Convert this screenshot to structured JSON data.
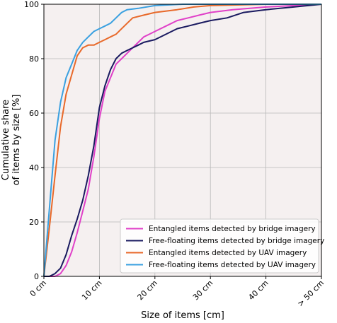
{
  "chart_data": {
    "type": "line",
    "xlabel": "Size of items [cm]",
    "ylabel_lines": [
      "Cumulative share",
      "of items by size [%]"
    ],
    "xlim": [
      0,
      50
    ],
    "ylim": [
      0,
      100
    ],
    "x_ticks": [
      {
        "value": 0,
        "label": "0 cm"
      },
      {
        "value": 10,
        "label": "10 cm"
      },
      {
        "value": 20,
        "label": "20 cm"
      },
      {
        "value": 30,
        "label": "30 cm"
      },
      {
        "value": 40,
        "label": "40 cm"
      },
      {
        "value": 50,
        "label": "> 50 cm"
      }
    ],
    "y_ticks": [
      0,
      20,
      40,
      60,
      80,
      100
    ],
    "grid": true,
    "background": "#f5f0f0",
    "legend_position": "bottom-right",
    "series": [
      {
        "name": "Entangled items detected by bridge imagery",
        "color": "#e040c8",
        "points": [
          [
            0,
            0
          ],
          [
            2,
            0
          ],
          [
            3,
            1
          ],
          [
            4,
            4
          ],
          [
            5,
            9
          ],
          [
            6,
            16
          ],
          [
            7,
            24
          ],
          [
            8,
            32
          ],
          [
            9,
            44
          ],
          [
            10,
            58
          ],
          [
            11,
            68
          ],
          [
            12,
            73
          ],
          [
            13,
            78
          ],
          [
            14,
            80
          ],
          [
            15,
            82
          ],
          [
            16,
            84
          ],
          [
            17,
            86
          ],
          [
            18,
            88
          ],
          [
            19,
            89
          ],
          [
            20,
            90
          ],
          [
            22,
            92
          ],
          [
            24,
            94
          ],
          [
            26,
            95
          ],
          [
            28,
            96
          ],
          [
            30,
            97
          ],
          [
            34,
            98
          ],
          [
            40,
            99
          ],
          [
            45,
            99.5
          ],
          [
            50,
            100
          ]
        ]
      },
      {
        "name": "Free-floating items detected by bridge imagery",
        "color": "#1a1a60",
        "points": [
          [
            0,
            0
          ],
          [
            1,
            0
          ],
          [
            2,
            1
          ],
          [
            3,
            3
          ],
          [
            4,
            8
          ],
          [
            5,
            15
          ],
          [
            6,
            21
          ],
          [
            7,
            28
          ],
          [
            8,
            37
          ],
          [
            9,
            48
          ],
          [
            10,
            62
          ],
          [
            11,
            70
          ],
          [
            12,
            76
          ],
          [
            13,
            80
          ],
          [
            14,
            82
          ],
          [
            15,
            83
          ],
          [
            16,
            84
          ],
          [
            17,
            85
          ],
          [
            18,
            86
          ],
          [
            20,
            87
          ],
          [
            22,
            89
          ],
          [
            24,
            91
          ],
          [
            26,
            92
          ],
          [
            28,
            93
          ],
          [
            30,
            94
          ],
          [
            33,
            95
          ],
          [
            36,
            97
          ],
          [
            40,
            98
          ],
          [
            45,
            99
          ],
          [
            50,
            100
          ]
        ]
      },
      {
        "name": "Entangled items detected by UAV imagery",
        "color": "#e8692a",
        "points": [
          [
            0,
            0
          ],
          [
            1,
            18
          ],
          [
            2,
            37
          ],
          [
            3,
            55
          ],
          [
            4,
            67
          ],
          [
            5,
            74
          ],
          [
            6,
            81
          ],
          [
            7,
            84
          ],
          [
            8,
            85
          ],
          [
            9,
            85
          ],
          [
            10,
            86
          ],
          [
            11,
            87
          ],
          [
            12,
            88
          ],
          [
            13,
            89
          ],
          [
            14,
            91
          ],
          [
            15,
            93
          ],
          [
            16,
            95
          ],
          [
            18,
            96
          ],
          [
            20,
            97
          ],
          [
            24,
            98
          ],
          [
            27,
            99
          ],
          [
            30,
            99.5
          ],
          [
            40,
            100
          ],
          [
            50,
            100
          ]
        ]
      },
      {
        "name": "Free-floating items detected by UAV imagery",
        "color": "#3aa0e0",
        "points": [
          [
            0,
            0
          ],
          [
            1,
            25
          ],
          [
            2,
            50
          ],
          [
            3,
            64
          ],
          [
            4,
            73
          ],
          [
            5,
            78
          ],
          [
            6,
            83
          ],
          [
            7,
            86
          ],
          [
            8,
            88
          ],
          [
            9,
            90
          ],
          [
            10,
            91
          ],
          [
            11,
            92
          ],
          [
            12,
            93
          ],
          [
            13,
            95
          ],
          [
            14,
            97
          ],
          [
            15,
            98
          ],
          [
            17,
            98.5
          ],
          [
            20,
            99.5
          ],
          [
            25,
            100
          ],
          [
            50,
            100
          ]
        ]
      }
    ]
  }
}
